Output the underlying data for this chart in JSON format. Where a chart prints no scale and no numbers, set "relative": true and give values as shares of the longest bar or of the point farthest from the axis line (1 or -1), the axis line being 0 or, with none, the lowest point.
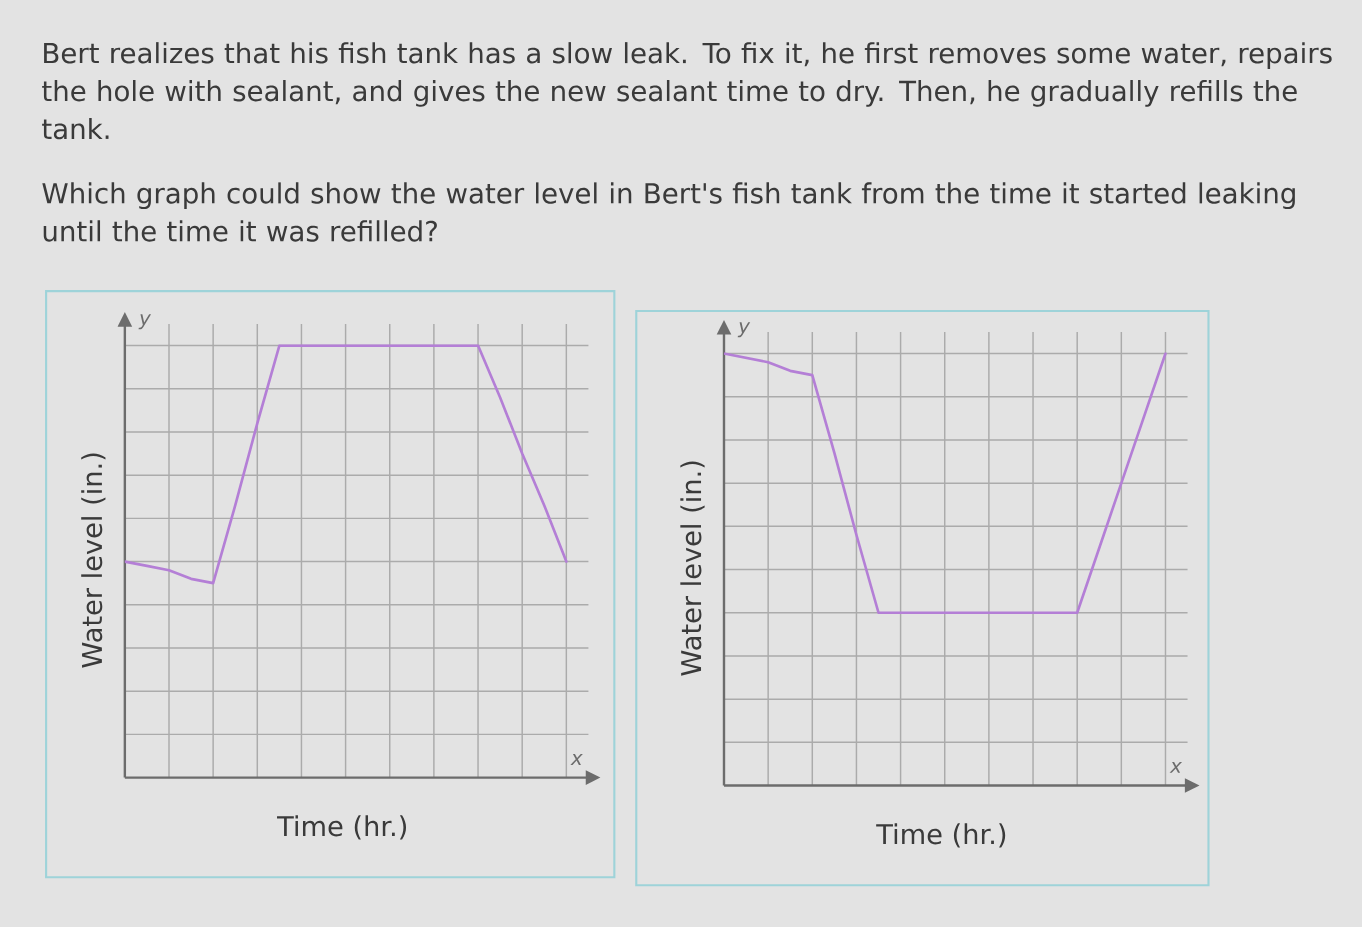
{
  "chart_data": [
    {
      "type": "other",
      "annotations": [
        "Bert realizes that his fish tank has a slow leak. To fix it, he first removes some water, repairs the hole with sealant, and gives the new sealant time to dry. Then, he gradually refills the tank.",
        "Which graph could show the water level in Bert's fish tank from the time it started leaking until the time it was refilled?"
      ]
    },
    {
      "type": "line",
      "relative": true,
      "xlabel": "Time (hr.)",
      "ylabel": "Water level (in.)",
      "grid": true,
      "annotations": [
        "y",
        "x"
      ],
      "categories": [
        null,
        null,
        null,
        null,
        null,
        null,
        null,
        null,
        null,
        null,
        null,
        null,
        null,
        null,
        null,
        null,
        null,
        null,
        null,
        null,
        null
      ],
      "series": [
        {
          "color": "#b47fd6",
          "values": [
            0.5,
            0.49,
            0.48,
            0.46,
            0.45,
            0.63,
            0.82,
            1,
            1,
            1,
            1,
            1,
            1,
            1,
            1,
            1,
            1,
            0.88,
            0.75,
            0.63,
            0.5
          ]
        }
      ]
    },
    {
      "type": "line",
      "relative": true,
      "xlabel": "Time (hr.)",
      "ylabel": "Water level (in.)",
      "grid": true,
      "annotations": [
        "y",
        "x"
      ],
      "categories": [
        null,
        null,
        null,
        null,
        null,
        null,
        null,
        null,
        null,
        null,
        null,
        null,
        null,
        null,
        null,
        null,
        null,
        null,
        null,
        null,
        null
      ],
      "series": [
        {
          "color": "#b47fd6",
          "values": [
            1,
            0.99,
            0.98,
            0.96,
            0.95,
            0.77,
            0.58,
            0.4,
            0.4,
            0.4,
            0.4,
            0.4,
            0.4,
            0.4,
            0.4,
            0.4,
            0.4,
            0.55,
            0.7,
            0.85,
            1
          ]
        }
      ]
    }
  ]
}
